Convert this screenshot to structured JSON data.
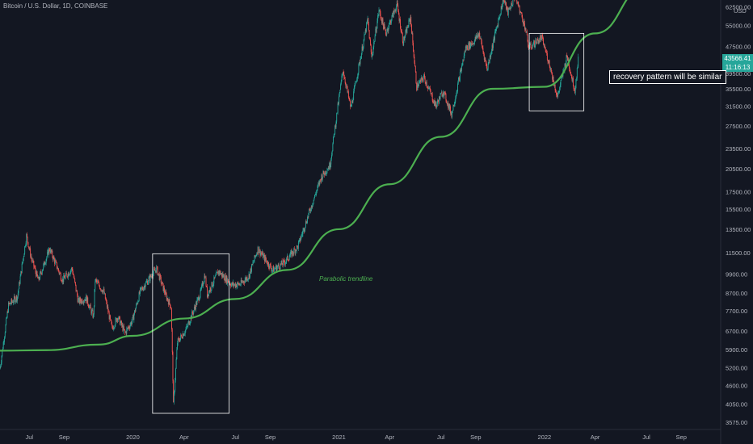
{
  "header": {
    "symbol_title": "Bitcoin / U.S. Dollar, 1D, COINBASE"
  },
  "price_badge": {
    "price": "43566.41",
    "countdown": "11:16:13"
  },
  "currency": "USD",
  "annotations": {
    "callout": "recovery pattern will be similar",
    "trendline_label": "Parabolic trendline"
  },
  "colors": {
    "background": "#131722",
    "up": "#26a69a",
    "down": "#ef5350",
    "trendline": "#4caf50",
    "box": "#ffffff"
  },
  "chart_data": {
    "type": "candlestick",
    "title": "Bitcoin / U.S. Dollar, 1D, COINBASE",
    "yscale": "log",
    "ylim": [
      3400,
      64000
    ],
    "xlim": [
      "2019-05-10",
      "2022-11-10"
    ],
    "y_ticks": [
      "3575.00",
      "4050.00",
      "4600.00",
      "5200.00",
      "5900.00",
      "6700.00",
      "7700.00",
      "8700.00",
      "9900.00",
      "11500.00",
      "13500.00",
      "15500.00",
      "17500.00",
      "20500.00",
      "23500.00",
      "27500.00",
      "31500.00",
      "35500.00",
      "39500.00",
      "47500.00",
      "55000.00",
      "62500.00"
    ],
    "x_ticks": [
      {
        "label": "Jul",
        "date": "2019-07-01"
      },
      {
        "label": "Sep",
        "date": "2019-09-01"
      },
      {
        "label": "2020",
        "date": "2020-01-01"
      },
      {
        "label": "Apr",
        "date": "2020-04-01"
      },
      {
        "label": "Jul",
        "date": "2020-07-01"
      },
      {
        "label": "Sep",
        "date": "2020-09-01"
      },
      {
        "label": "2021",
        "date": "2021-01-01"
      },
      {
        "label": "Apr",
        "date": "2021-04-01"
      },
      {
        "label": "Jul",
        "date": "2021-07-01"
      },
      {
        "label": "Sep",
        "date": "2021-09-01"
      },
      {
        "label": "2022",
        "date": "2022-01-01"
      },
      {
        "label": "Apr",
        "date": "2022-04-01"
      },
      {
        "label": "Jul",
        "date": "2022-07-01"
      },
      {
        "label": "Sep",
        "date": "2022-09-01"
      }
    ],
    "price_path": [
      [
        "2019-05-10",
        5200
      ],
      [
        "2019-05-25",
        8000
      ],
      [
        "2019-06-10",
        8500
      ],
      [
        "2019-06-26",
        12900
      ],
      [
        "2019-07-05",
        11000
      ],
      [
        "2019-07-17",
        9500
      ],
      [
        "2019-08-06",
        11800
      ],
      [
        "2019-08-29",
        9500
      ],
      [
        "2019-09-15",
        10300
      ],
      [
        "2019-09-26",
        8200
      ],
      [
        "2019-10-10",
        8400
      ],
      [
        "2019-10-23",
        7400
      ],
      [
        "2019-10-26",
        9500
      ],
      [
        "2019-11-10",
        8800
      ],
      [
        "2019-11-25",
        6800
      ],
      [
        "2019-12-05",
        7400
      ],
      [
        "2019-12-18",
        6600
      ],
      [
        "2019-12-31",
        7200
      ],
      [
        "2020-01-14",
        8800
      ],
      [
        "2020-02-12",
        10300
      ],
      [
        "2020-02-28",
        8600
      ],
      [
        "2020-03-09",
        7900
      ],
      [
        "2020-03-12",
        4850
      ],
      [
        "2020-03-13",
        4000
      ],
      [
        "2020-03-20",
        6200
      ],
      [
        "2020-04-05",
        6800
      ],
      [
        "2020-04-30",
        8700
      ],
      [
        "2020-05-08",
        9900
      ],
      [
        "2020-05-12",
        8600
      ],
      [
        "2020-06-01",
        10100
      ],
      [
        "2020-06-25",
        9200
      ],
      [
        "2020-07-10",
        9250
      ],
      [
        "2020-07-25",
        9800
      ],
      [
        "2020-08-10",
        11800
      ],
      [
        "2020-09-05",
        10200
      ],
      [
        "2020-09-25",
        10700
      ],
      [
        "2020-10-20",
        12000
      ],
      [
        "2020-11-10",
        15300
      ],
      [
        "2020-12-01",
        19400
      ],
      [
        "2020-12-16",
        21000
      ],
      [
        "2021-01-08",
        40500
      ],
      [
        "2021-01-22",
        31000
      ],
      [
        "2021-02-21",
        57000
      ],
      [
        "2021-02-28",
        44000
      ],
      [
        "2021-03-13",
        61000
      ],
      [
        "2021-03-25",
        52000
      ],
      [
        "2021-04-14",
        63500
      ],
      [
        "2021-04-25",
        49000
      ],
      [
        "2021-05-08",
        58000
      ],
      [
        "2021-05-19",
        36000
      ],
      [
        "2021-06-01",
        38500
      ],
      [
        "2021-06-22",
        31500
      ],
      [
        "2021-07-05",
        35000
      ],
      [
        "2021-07-20",
        29800
      ],
      [
        "2021-08-14",
        47000
      ],
      [
        "2021-08-28",
        49000
      ],
      [
        "2021-09-07",
        52000
      ],
      [
        "2021-09-21",
        40700
      ],
      [
        "2021-10-20",
        66000
      ],
      [
        "2021-10-28",
        60000
      ],
      [
        "2021-11-10",
        67500
      ],
      [
        "2021-11-28",
        54000
      ],
      [
        "2021-12-04",
        47000
      ],
      [
        "2021-12-27",
        50500
      ],
      [
        "2022-01-10",
        42000
      ],
      [
        "2022-01-24",
        33500
      ],
      [
        "2022-02-10",
        44500
      ],
      [
        "2022-02-24",
        35000
      ],
      [
        "2022-03-02",
        43566
      ]
    ],
    "trendline": {
      "name": "Parabolic trendline",
      "points": [
        [
          "2019-05-10",
          5850
        ],
        [
          "2019-08-01",
          5870
        ],
        [
          "2019-11-01",
          6100
        ],
        [
          "2020-01-01",
          6480
        ],
        [
          "2020-04-01",
          7300
        ],
        [
          "2020-07-01",
          8350
        ],
        [
          "2020-10-01",
          10200
        ],
        [
          "2021-01-01",
          13500
        ],
        [
          "2021-04-01",
          18400
        ],
        [
          "2021-07-01",
          25500
        ],
        [
          "2021-10-01",
          35500
        ],
        [
          "2022-01-01",
          36000
        ],
        [
          "2022-04-01",
          52000
        ],
        [
          "2022-07-01",
          72000
        ]
      ]
    },
    "boxes": [
      {
        "x": [
          "2020-02-05",
          "2020-06-20"
        ],
        "y": [
          3800,
          11400
        ]
      },
      {
        "x": [
          "2021-12-05",
          "2022-03-12"
        ],
        "y": [
          30500,
          52000
        ]
      }
    ]
  }
}
